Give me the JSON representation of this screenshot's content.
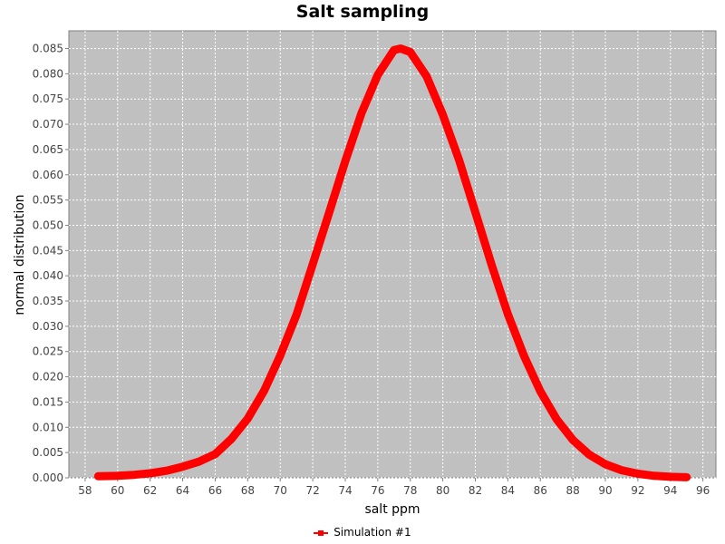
{
  "chart_data": {
    "type": "line",
    "title": "Salt sampling",
    "xlabel": "salt ppm",
    "ylabel": "normal distribution",
    "xlim": [
      57,
      96.8
    ],
    "ylim": [
      0,
      0.0885
    ],
    "x_ticks": [
      58,
      60,
      62,
      64,
      66,
      68,
      70,
      72,
      74,
      76,
      78,
      80,
      82,
      84,
      86,
      88,
      90,
      92,
      94,
      96
    ],
    "y_ticks": [
      "0.000",
      "0.005",
      "0.010",
      "0.015",
      "0.020",
      "0.025",
      "0.030",
      "0.035",
      "0.040",
      "0.045",
      "0.050",
      "0.055",
      "0.060",
      "0.065",
      "0.070",
      "0.075",
      "0.080",
      "0.085"
    ],
    "grid": true,
    "legend_position": "bottom",
    "background": "#c0c0c0",
    "series": [
      {
        "name": "Simulation #1",
        "color": "#ff0000",
        "x": [
          58.8,
          60,
          61,
          62,
          63,
          64,
          65,
          66,
          67,
          68,
          69,
          70,
          71,
          72,
          73,
          74,
          75,
          76,
          77,
          77.4,
          78,
          79,
          80,
          81,
          82,
          83,
          84,
          85,
          86,
          87,
          88,
          89,
          90,
          91,
          92,
          93,
          94,
          95
        ],
        "y": [
          0.0003,
          0.0004,
          0.0006,
          0.0009,
          0.0014,
          0.0022,
          0.0032,
          0.0047,
          0.0077,
          0.0117,
          0.0172,
          0.0242,
          0.0323,
          0.0423,
          0.0524,
          0.0627,
          0.0722,
          0.0798,
          0.0847,
          0.085,
          0.0843,
          0.0795,
          0.0719,
          0.0629,
          0.0526,
          0.0422,
          0.0324,
          0.0241,
          0.0171,
          0.0116,
          0.0075,
          0.0046,
          0.0027,
          0.0015,
          0.0008,
          0.0004,
          0.0002,
          0.0001
        ]
      }
    ]
  }
}
